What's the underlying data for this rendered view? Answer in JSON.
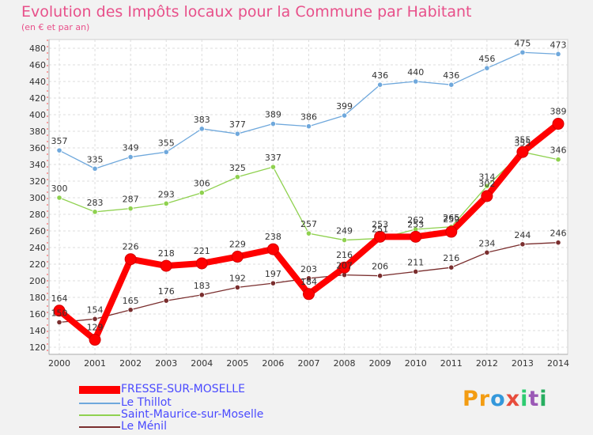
{
  "chart_data": {
    "type": "line",
    "title": "Evolution des Impôts locaux pour la Commune par Habitant",
    "subtitle": "(en € et par an)",
    "x": [
      2000,
      2001,
      2002,
      2003,
      2004,
      2005,
      2006,
      2007,
      2008,
      2009,
      2010,
      2011,
      2012,
      2013,
      2014
    ],
    "ylim": [
      120,
      480
    ],
    "yticks": [
      120,
      140,
      160,
      180,
      200,
      220,
      240,
      260,
      280,
      300,
      320,
      340,
      360,
      380,
      400,
      420,
      440,
      460,
      480
    ],
    "grid": true,
    "legend_position": "bottom-left",
    "series": [
      {
        "name": "FRESSE-SUR-MOSELLE",
        "color": "#ff0000",
        "emphasis": true,
        "values": [
          164,
          129,
          226,
          218,
          221,
          229,
          238,
          184,
          216,
          253,
          253,
          259,
          302,
          355,
          389
        ],
        "labels": [
          "164",
          "129",
          "226",
          "218",
          "221",
          "229",
          "238",
          "184",
          "216",
          "253",
          "253",
          "259",
          "302",
          "355",
          "389"
        ]
      },
      {
        "name": "Le Thillot",
        "color": "#6fa8dc",
        "values": [
          357,
          335,
          349,
          355,
          383,
          377,
          389,
          386,
          399,
          436,
          440,
          436,
          456,
          475,
          473
        ],
        "labels": [
          "357",
          "335",
          "349",
          "355",
          "383",
          "377",
          "389",
          "386",
          "399",
          "436",
          "440",
          "436",
          "456",
          "475",
          "473"
        ]
      },
      {
        "name": "Saint-Maurice-sur-Moselle",
        "color": "#8fd14f",
        "values": [
          300,
          283,
          287,
          293,
          306,
          325,
          337,
          257,
          249,
          251,
          262,
          265,
          314,
          355,
          346
        ],
        "labels": [
          "300",
          "283",
          "287",
          "293",
          "306",
          "325",
          "337",
          "257",
          "249",
          "251",
          "262",
          "265",
          "314",
          "355",
          "346"
        ]
      },
      {
        "name": "Le Ménil",
        "color": "#7a2e2e",
        "values": [
          150,
          154,
          165,
          176,
          183,
          192,
          197,
          203,
          207,
          206,
          211,
          216,
          234,
          244,
          246
        ],
        "labels": [
          "150",
          "154",
          "165",
          "176",
          "183",
          "192",
          "197",
          "203",
          "207",
          "206",
          "211",
          "216",
          "234",
          "244",
          "246"
        ]
      }
    ]
  },
  "brand": {
    "letters": [
      "P",
      "r",
      "o",
      "x",
      "i",
      "t",
      "i"
    ],
    "colors": [
      "#f39c12",
      "#f39c12",
      "#3498db",
      "#e74c3c",
      "#2ecc71",
      "#9b59b6",
      "#27ae60"
    ]
  }
}
